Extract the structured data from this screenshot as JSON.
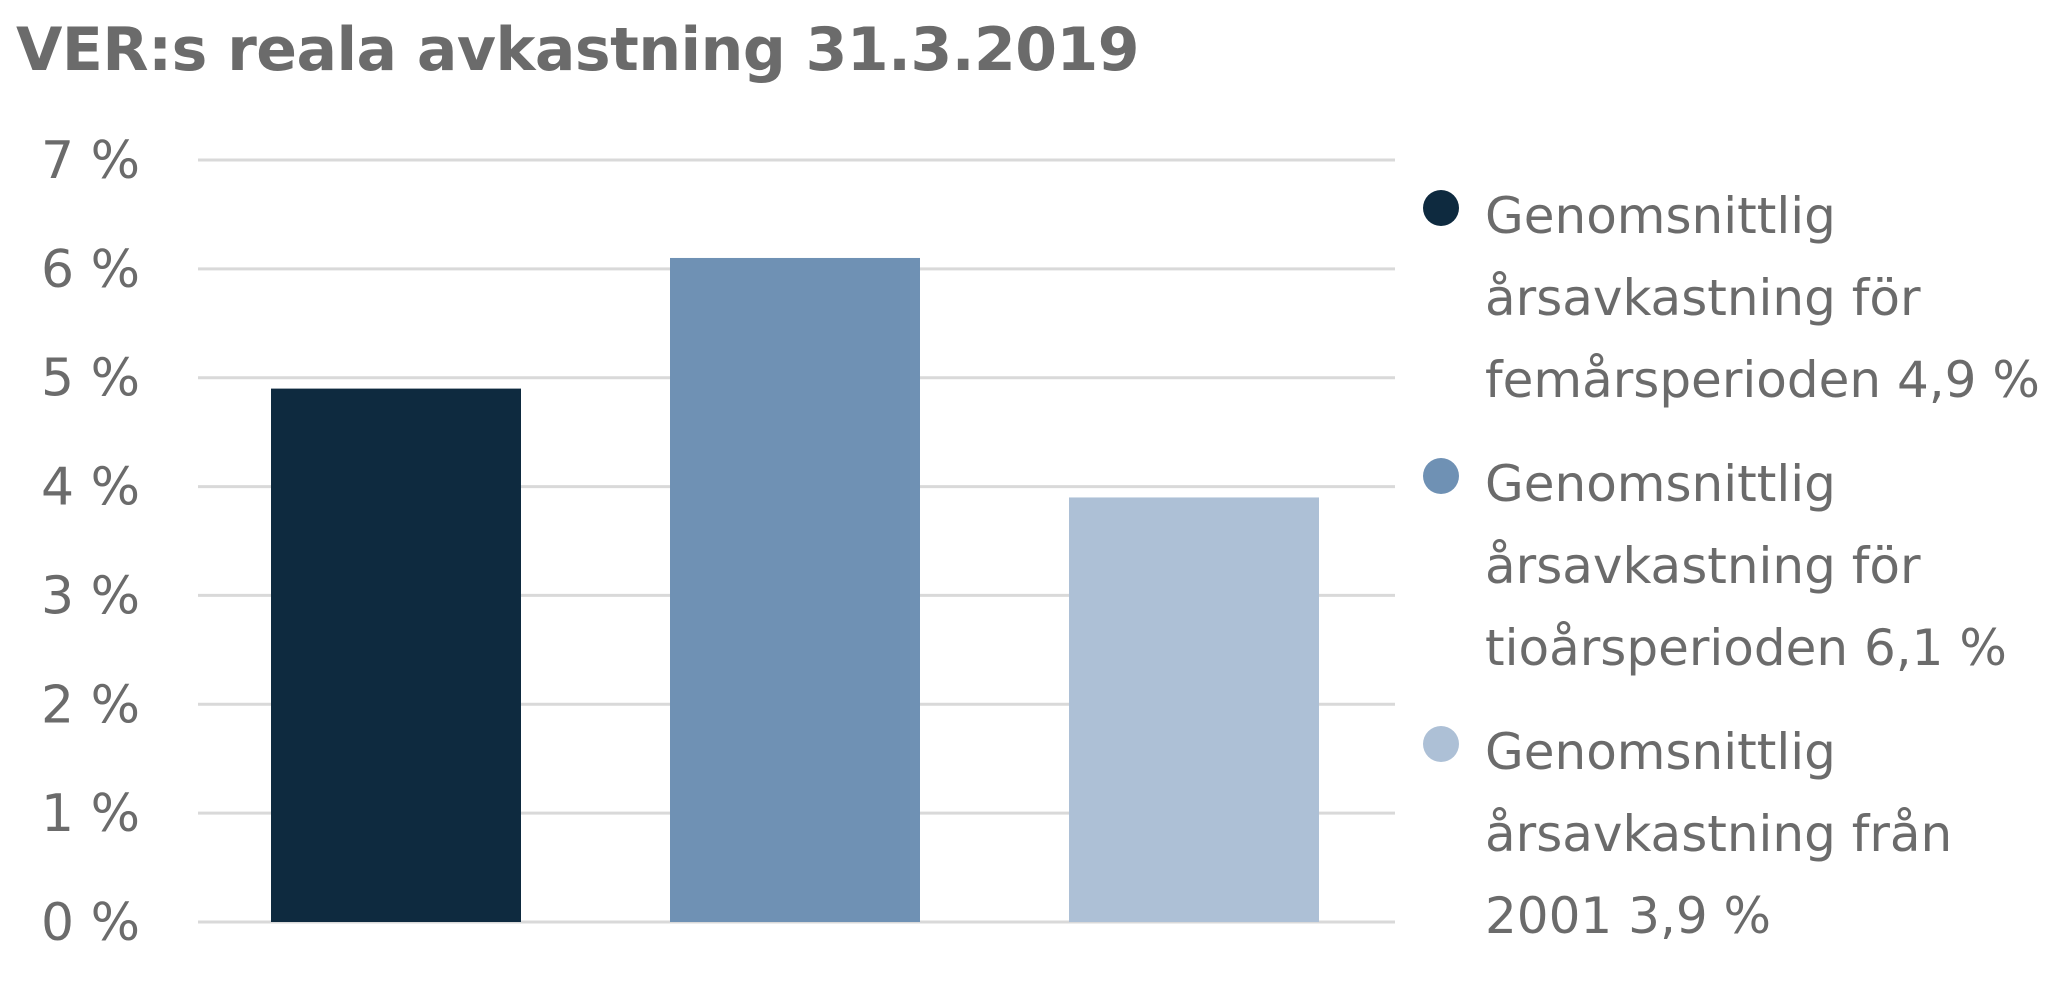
{
  "chart_data": {
    "type": "bar",
    "title": "VER:s reala avkastning 31.3.2019",
    "categories": [
      "Genomsnittlig årsavkastning för femårsperioden 4,9 %",
      "Genomsnittlig årsavkastning för tioårsperioden 6,1 %",
      "Genomsnittlig årsavkastning från 2001 3,9 %"
    ],
    "values": [
      4.9,
      6.1,
      3.9
    ],
    "colors": [
      "#0e2a3f",
      "#6f91b4",
      "#adc0d6"
    ],
    "ylim": [
      0,
      7
    ],
    "yticks": [
      "0 %",
      "1 %",
      "2 %",
      "3 %",
      "4 %",
      "5 %",
      "6 %",
      "7 %"
    ],
    "xlabel": "",
    "ylabel": "",
    "grid": true,
    "legend_position": "right",
    "legend": [
      {
        "label": "Genomsnittlig\nårsavkastning för\nfemårsperioden 4,9 %",
        "color": "#0e2a3f"
      },
      {
        "label": "Genomsnittlig\nårsavkastning för\ntioårsperioden 6,1 %",
        "color": "#6f91b4"
      },
      {
        "label": "Genomsnittlig\nårsavkastning från\n2001 3,9 %",
        "color": "#adc0d6"
      }
    ]
  }
}
